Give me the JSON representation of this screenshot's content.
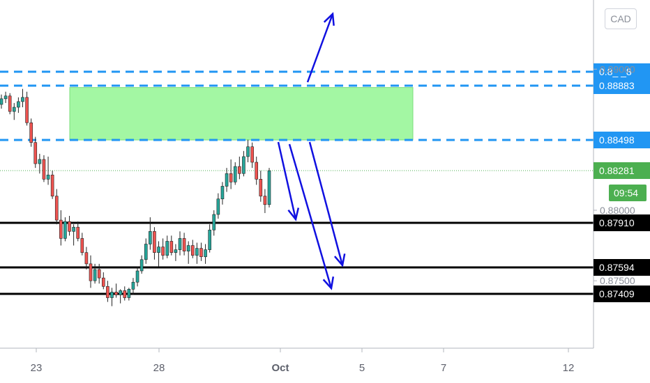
{
  "chart_data": {
    "type": "candlestick",
    "symbol_currency": "CAD",
    "x_ticks": [
      "23",
      "28",
      "Oct",
      "5",
      "7",
      "12"
    ],
    "y_range": [
      0.8715,
      0.899
    ],
    "y_ticks": [
      0.89,
      0.88,
      0.875
    ],
    "y_tick_labels": [
      "0.89000",
      "0.88000",
      "0.87500"
    ],
    "current_price": {
      "value": 0.88281,
      "label": "0.88281",
      "countdown": "09:54",
      "color": "#4caf50"
    },
    "levels": [
      {
        "value": 0.8898,
        "label": "0.8_ _8",
        "style": "dashed",
        "color": "#2196f3"
      },
      {
        "value": 0.88883,
        "label": "0.88883",
        "style": "dashed",
        "color": "#2196f3"
      },
      {
        "value": 0.88498,
        "label": "0.88498",
        "style": "dashed",
        "color": "#2196f3"
      },
      {
        "value": 0.8791,
        "label": "0.87910",
        "style": "solid",
        "color": "#000000"
      },
      {
        "value": 0.87594,
        "label": "0.87594",
        "style": "solid",
        "color": "#000000"
      },
      {
        "value": 0.87409,
        "label": "0.87409",
        "style": "solid",
        "color": "#000000"
      }
    ],
    "zone": {
      "from": 0.88498,
      "to": 0.8887,
      "color": "#a3f7a3"
    },
    "colors": {
      "up": "#26a69a",
      "down": "#ef5350",
      "arrow": "#1010e0"
    },
    "candles": [
      [
        0.8875,
        0.8882,
        0.8872,
        0.8879
      ],
      [
        0.8879,
        0.8884,
        0.8876,
        0.8881
      ],
      [
        0.8881,
        0.8883,
        0.8868,
        0.887
      ],
      [
        0.887,
        0.8876,
        0.8864,
        0.8873
      ],
      [
        0.8873,
        0.888,
        0.8869,
        0.8877
      ],
      [
        0.8877,
        0.8886,
        0.8873,
        0.888
      ],
      [
        0.888,
        0.8884,
        0.886,
        0.8862
      ],
      [
        0.8862,
        0.8865,
        0.8845,
        0.8848
      ],
      [
        0.8848,
        0.8852,
        0.883,
        0.8833
      ],
      [
        0.8833,
        0.884,
        0.8826,
        0.8836
      ],
      [
        0.8836,
        0.8839,
        0.882,
        0.8822
      ],
      [
        0.8822,
        0.8838,
        0.8818,
        0.8825
      ],
      [
        0.8825,
        0.8828,
        0.8808,
        0.881
      ],
      [
        0.881,
        0.8815,
        0.879,
        0.8793
      ],
      [
        0.8793,
        0.88,
        0.8775,
        0.878
      ],
      [
        0.878,
        0.8795,
        0.8778,
        0.8792
      ],
      [
        0.8792,
        0.8796,
        0.8782,
        0.8785
      ],
      [
        0.8785,
        0.879,
        0.8775,
        0.8788
      ],
      [
        0.8788,
        0.8792,
        0.8778,
        0.878
      ],
      [
        0.878,
        0.8784,
        0.8768,
        0.877
      ],
      [
        0.877,
        0.8774,
        0.8758,
        0.8762
      ],
      [
        0.8762,
        0.8768,
        0.8745,
        0.875
      ],
      [
        0.875,
        0.8762,
        0.8748,
        0.8758
      ],
      [
        0.8758,
        0.8762,
        0.8748,
        0.8752
      ],
      [
        0.8752,
        0.8756,
        0.8744,
        0.8746
      ],
      [
        0.8746,
        0.875,
        0.8735,
        0.8738
      ],
      [
        0.8738,
        0.8745,
        0.8732,
        0.8742
      ],
      [
        0.8742,
        0.8748,
        0.8738,
        0.874
      ],
      [
        0.874,
        0.8744,
        0.8734,
        0.8743
      ],
      [
        0.8743,
        0.8746,
        0.8736,
        0.8738
      ],
      [
        0.8738,
        0.8745,
        0.8736,
        0.8744
      ],
      [
        0.8744,
        0.8752,
        0.874,
        0.8749
      ],
      [
        0.8749,
        0.876,
        0.8746,
        0.8757
      ],
      [
        0.8757,
        0.8768,
        0.8755,
        0.8765
      ],
      [
        0.8765,
        0.878,
        0.8762,
        0.8776
      ],
      [
        0.8776,
        0.8795,
        0.8772,
        0.8785
      ],
      [
        0.8785,
        0.8788,
        0.8765,
        0.877
      ],
      [
        0.877,
        0.8778,
        0.876,
        0.8774
      ],
      [
        0.8774,
        0.878,
        0.8765,
        0.8768
      ],
      [
        0.8768,
        0.8782,
        0.8766,
        0.8778
      ],
      [
        0.8778,
        0.8782,
        0.8768,
        0.877
      ],
      [
        0.877,
        0.8776,
        0.8764,
        0.8772
      ],
      [
        0.8772,
        0.8785,
        0.8768,
        0.878
      ],
      [
        0.878,
        0.8784,
        0.8768,
        0.8771
      ],
      [
        0.8771,
        0.8778,
        0.8762,
        0.8775
      ],
      [
        0.8775,
        0.8779,
        0.8766,
        0.8768
      ],
      [
        0.8768,
        0.8777,
        0.8762,
        0.8773
      ],
      [
        0.8773,
        0.8777,
        0.8764,
        0.8767
      ],
      [
        0.8767,
        0.8776,
        0.8762,
        0.8772
      ],
      [
        0.8772,
        0.879,
        0.877,
        0.8786
      ],
      [
        0.8786,
        0.88,
        0.8782,
        0.8797
      ],
      [
        0.8797,
        0.8812,
        0.8794,
        0.8808
      ],
      [
        0.8808,
        0.882,
        0.8804,
        0.8817
      ],
      [
        0.8817,
        0.883,
        0.8813,
        0.8826
      ],
      [
        0.8826,
        0.8836,
        0.8815,
        0.882
      ],
      [
        0.882,
        0.8834,
        0.8818,
        0.8831
      ],
      [
        0.8831,
        0.8838,
        0.8822,
        0.8826
      ],
      [
        0.8826,
        0.8842,
        0.8824,
        0.8838
      ],
      [
        0.8838,
        0.885,
        0.8834,
        0.8845
      ],
      [
        0.8845,
        0.8848,
        0.883,
        0.8834
      ],
      [
        0.8834,
        0.8838,
        0.8818,
        0.8822
      ],
      [
        0.8822,
        0.8828,
        0.8806,
        0.881
      ],
      [
        0.881,
        0.8815,
        0.8798,
        0.8804
      ],
      [
        0.8804,
        0.883,
        0.8802,
        0.8828
      ]
    ]
  }
}
